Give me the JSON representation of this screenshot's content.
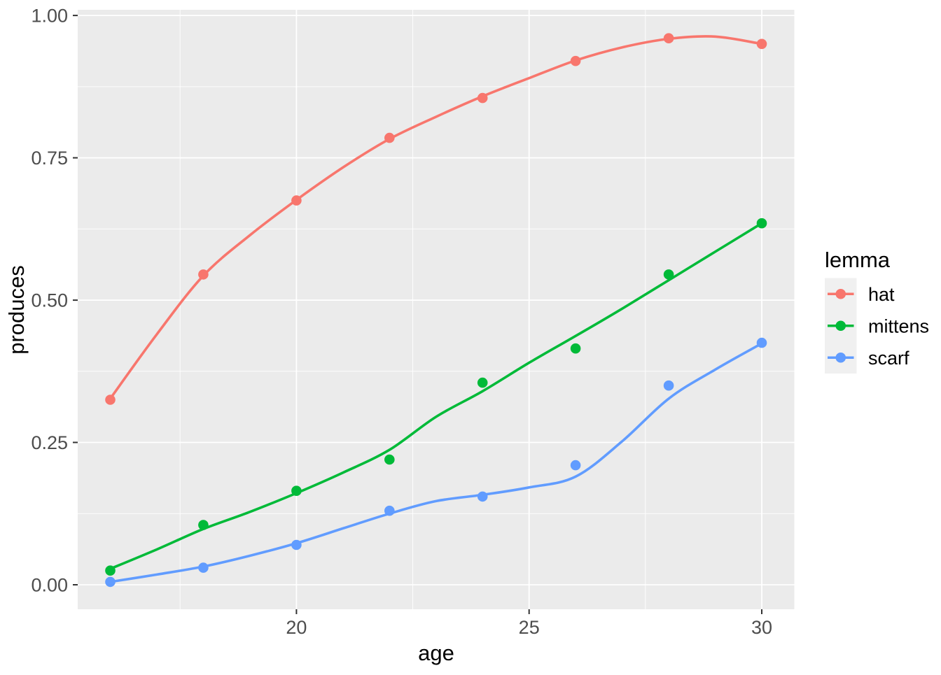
{
  "chart_data": {
    "type": "scatter",
    "title": "",
    "xlabel": "age",
    "ylabel": "produces",
    "legend_title": "lemma",
    "legend_position": "right",
    "grid": true,
    "panel_bg": "#EBEBEB",
    "grid_color": "#FFFFFF",
    "legend_key_bg": "#F0F0F0",
    "tick_label_color": "#4D4D4D",
    "tick_mark_color": "#333333",
    "axis_title_color": "#000000",
    "xlim": [
      15.3,
      30.7
    ],
    "ylim": [
      -0.043,
      1.01
    ],
    "x_ticks": [
      {
        "value": 20,
        "label": "20"
      },
      {
        "value": 25,
        "label": "25"
      },
      {
        "value": 30,
        "label": "30"
      }
    ],
    "x_minor": [
      17.5,
      22.5,
      27.5
    ],
    "y_ticks": [
      {
        "value": 0.0,
        "label": "0.00"
      },
      {
        "value": 0.25,
        "label": "0.25"
      },
      {
        "value": 0.5,
        "label": "0.50"
      },
      {
        "value": 0.75,
        "label": "0.75"
      },
      {
        "value": 1.0,
        "label": "1.00"
      }
    ],
    "y_minor": [
      0.125,
      0.375,
      0.625,
      0.875
    ],
    "series": [
      {
        "name": "hat",
        "color": "#F8766D",
        "points": [
          [
            16,
            0.325
          ],
          [
            18,
            0.545
          ],
          [
            20,
            0.675
          ],
          [
            22,
            0.785
          ],
          [
            24,
            0.855
          ],
          [
            26,
            0.92
          ],
          [
            28,
            0.96
          ],
          [
            30,
            0.95
          ]
        ],
        "smooth": [
          [
            16,
            0.327
          ],
          [
            17,
            0.44
          ],
          [
            18,
            0.543
          ],
          [
            19,
            0.614
          ],
          [
            20,
            0.676
          ],
          [
            21,
            0.733
          ],
          [
            22,
            0.783
          ],
          [
            23,
            0.822
          ],
          [
            24,
            0.858
          ],
          [
            25,
            0.89
          ],
          [
            26,
            0.921
          ],
          [
            27,
            0.944
          ],
          [
            28,
            0.959
          ],
          [
            29,
            0.963
          ],
          [
            30,
            0.95
          ]
        ]
      },
      {
        "name": "mittens",
        "color": "#00BA38",
        "points": [
          [
            16,
            0.025
          ],
          [
            18,
            0.105
          ],
          [
            20,
            0.165
          ],
          [
            22,
            0.22
          ],
          [
            24,
            0.355
          ],
          [
            26,
            0.415
          ],
          [
            28,
            0.545
          ],
          [
            30,
            0.635
          ]
        ],
        "smooth": [
          [
            16,
            0.028
          ],
          [
            17,
            0.062
          ],
          [
            18,
            0.098
          ],
          [
            19,
            0.128
          ],
          [
            20,
            0.161
          ],
          [
            21,
            0.197
          ],
          [
            22,
            0.237
          ],
          [
            23,
            0.295
          ],
          [
            24,
            0.34
          ],
          [
            25,
            0.39
          ],
          [
            26,
            0.437
          ],
          [
            27,
            0.485
          ],
          [
            28,
            0.535
          ],
          [
            29,
            0.585
          ],
          [
            30,
            0.635
          ]
        ]
      },
      {
        "name": "scarf",
        "color": "#619CFF",
        "points": [
          [
            16,
            0.005
          ],
          [
            18,
            0.03
          ],
          [
            20,
            0.07
          ],
          [
            22,
            0.13
          ],
          [
            24,
            0.155
          ],
          [
            26,
            0.21
          ],
          [
            28,
            0.35
          ],
          [
            30,
            0.425
          ]
        ],
        "smooth": [
          [
            16,
            0.005
          ],
          [
            17,
            0.018
          ],
          [
            18,
            0.032
          ],
          [
            19,
            0.051
          ],
          [
            20,
            0.073
          ],
          [
            21,
            0.099
          ],
          [
            22,
            0.125
          ],
          [
            23,
            0.147
          ],
          [
            24,
            0.158
          ],
          [
            25,
            0.171
          ],
          [
            26,
            0.19
          ],
          [
            27,
            0.252
          ],
          [
            28,
            0.327
          ],
          [
            29,
            0.378
          ],
          [
            30,
            0.424
          ]
        ]
      }
    ]
  }
}
